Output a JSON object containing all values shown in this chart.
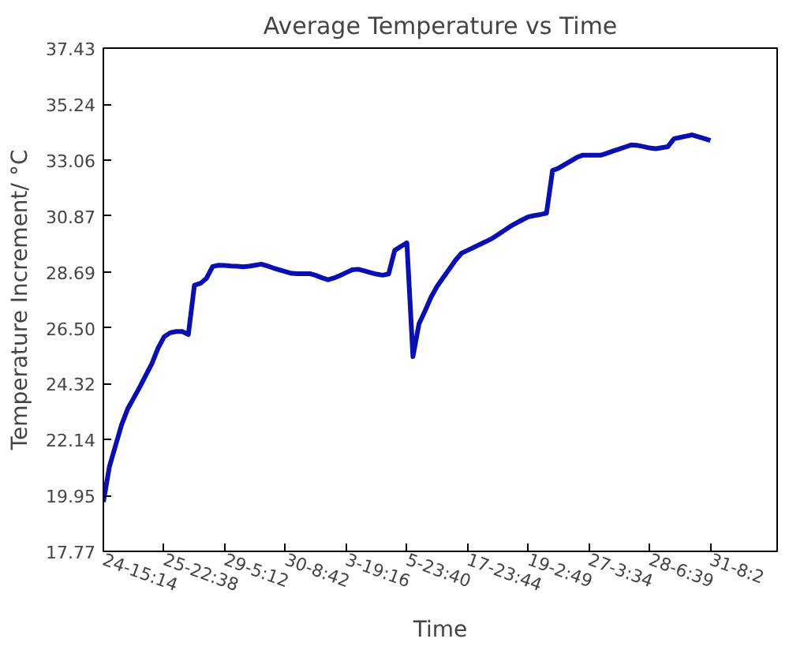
{
  "chart_data": {
    "type": "line",
    "title": "Average Temperature vs Time",
    "xlabel": "Time",
    "ylabel": "Temperature Increment/ °C",
    "categories": [
      "24-15:14",
      null,
      null,
      null,
      null,
      null,
      null,
      null,
      null,
      null,
      "25-22:38",
      null,
      null,
      null,
      null,
      null,
      null,
      null,
      null,
      null,
      "29-5:12",
      null,
      null,
      null,
      null,
      null,
      null,
      null,
      null,
      null,
      "30-8:42",
      null,
      null,
      null,
      null,
      null,
      null,
      null,
      null,
      null,
      "3-19:16",
      null,
      null,
      null,
      null,
      null,
      null,
      null,
      null,
      null,
      "5-23:40",
      null,
      null,
      null,
      null,
      null,
      null,
      null,
      null,
      null,
      "17-23:44",
      null,
      null,
      null,
      null,
      null,
      null,
      null,
      null,
      null,
      "19-2:49",
      null,
      null,
      null,
      null,
      null,
      null,
      null,
      null,
      null,
      "27-3:34",
      null,
      null,
      null,
      null,
      null,
      null,
      null,
      null,
      null,
      "28-6:39",
      null,
      null,
      null,
      null,
      null,
      null,
      null,
      null,
      null,
      "31-8:2",
      null,
      null,
      null,
      null,
      null,
      null,
      null,
      null,
      null,
      null,
      null
    ],
    "ylim": [
      17.77,
      37.43
    ],
    "yticks": [
      17.77,
      19.95,
      22.14,
      24.32,
      {
        "value": 26.5,
        "label": "26.50"
      },
      28.69,
      30.87,
      33.06,
      35.24,
      37.43
    ],
    "grid": false,
    "marker": "none",
    "line_style": "solid",
    "series": [
      {
        "color": "#0a10b0",
        "values": [
          19.7,
          21.08,
          21.9,
          22.71,
          23.33,
          23.76,
          24.19,
          24.65,
          25.11,
          25.7,
          26.15,
          26.31,
          26.36,
          26.36,
          26.24,
          28.17,
          28.24,
          28.44,
          28.9,
          28.95,
          28.94,
          28.92,
          28.91,
          28.89,
          28.91,
          28.95,
          28.99,
          28.92,
          28.84,
          28.77,
          28.7,
          28.63,
          28.62,
          28.62,
          28.62,
          28.55,
          28.46,
          28.38,
          28.45,
          28.55,
          28.66,
          28.77,
          28.79,
          28.73,
          28.66,
          28.6,
          28.56,
          28.61,
          29.53,
          29.68,
          29.82,
          25.38,
          26.66,
          27.17,
          27.71,
          28.13,
          28.47,
          28.8,
          29.14,
          29.42,
          29.53,
          29.64,
          29.76,
          29.87,
          29.99,
          30.14,
          30.3,
          30.46,
          30.59,
          30.72,
          30.84,
          30.89,
          30.93,
          30.98,
          32.65,
          32.74,
          32.88,
          33.02,
          33.16,
          33.25,
          33.25,
          33.25,
          33.25,
          33.33,
          33.41,
          33.49,
          33.57,
          33.65,
          33.63,
          33.58,
          33.53,
          33.5,
          33.54,
          33.58,
          33.89,
          33.94,
          33.99,
          34.04,
          33.97,
          33.9,
          33.82,
          null,
          null,
          null,
          null,
          null,
          null,
          null,
          null,
          null,
          null,
          null
        ]
      }
    ]
  }
}
